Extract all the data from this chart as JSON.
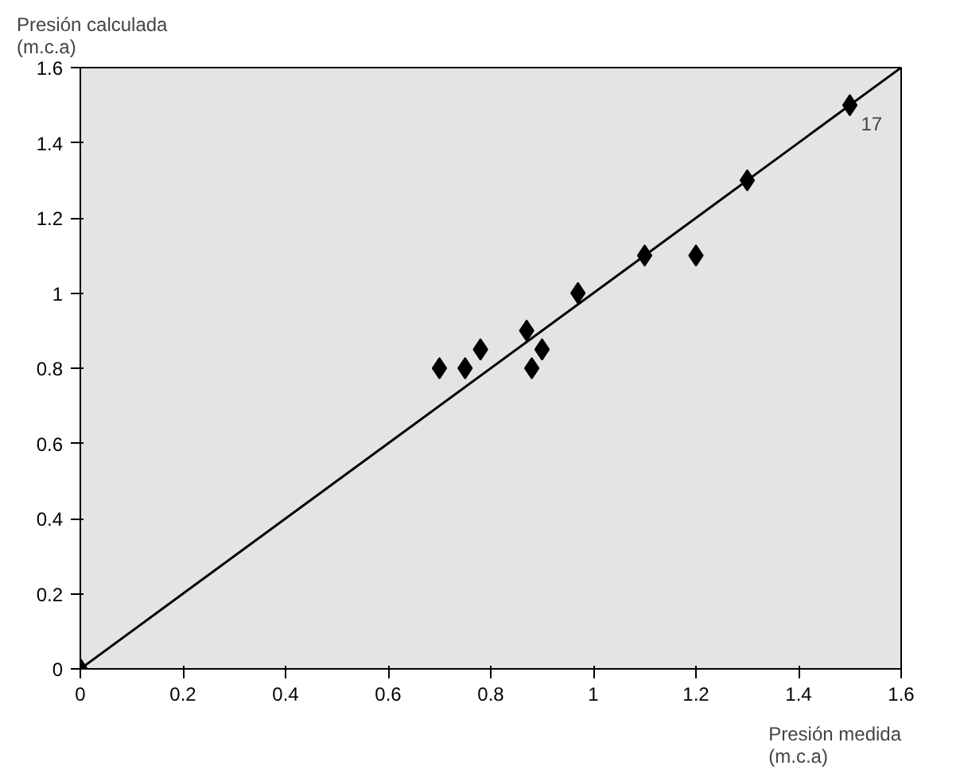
{
  "chart_data": {
    "type": "scatter",
    "xlabel": "Presión medida\n(m.c.a)",
    "ylabel": "Presión calculada\n(m.c.a)",
    "xlim": [
      0,
      1.6
    ],
    "ylim": [
      0,
      1.6
    ],
    "xticks": [
      0,
      0.2,
      0.4,
      0.6,
      0.8,
      1,
      1.2,
      1.4,
      1.6
    ],
    "yticks": [
      0,
      0.2,
      0.4,
      0.6,
      0.8,
      1,
      1.2,
      1.4,
      1.6
    ],
    "grid": false,
    "marker": "diamond",
    "series": [
      {
        "color": "#000000",
        "x": [
          0,
          0.7,
          0.75,
          0.78,
          0.87,
          0.88,
          0.9,
          0.97,
          1.1,
          1.2,
          1.3,
          1.5
        ],
        "values": [
          0,
          0.8,
          0.8,
          0.85,
          0.9,
          0.8,
          0.85,
          1.0,
          1.1,
          1.1,
          1.3,
          1.5
        ]
      },
      {
        "type": "line",
        "marker": "none",
        "color": "#000000",
        "x": [
          0,
          1.6
        ],
        "values": [
          0,
          1.6
        ]
      }
    ],
    "annotations": [
      {
        "text": "17",
        "x": 1.5,
        "y": 1.5
      }
    ]
  }
}
